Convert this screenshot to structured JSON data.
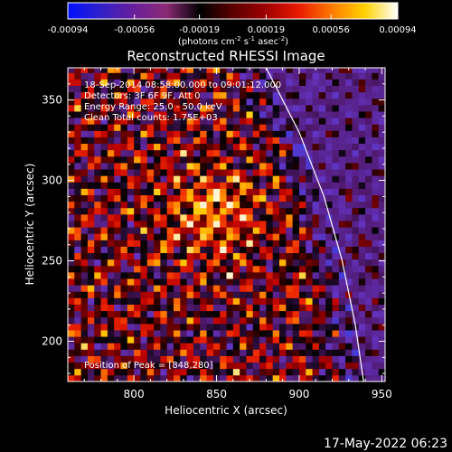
{
  "chart_data": {
    "type": "heatmap",
    "title": "Reconstructed RHESSI Image",
    "colorbar": {
      "ticks": [
        "-0.00094",
        "-0.00056",
        "-0.00019",
        "0.00019",
        "0.00056",
        "0.00094"
      ],
      "unit_parts": [
        "(photons cm",
        "-2",
        " s",
        "-1",
        " asec",
        "-2",
        ")"
      ],
      "range": [
        -0.00094,
        0.00094
      ],
      "colors": [
        "#0010ff",
        "#3020c8",
        "#6a1f9a",
        "#8a2a74",
        "#000000",
        "#5a0000",
        "#a00000",
        "#e81a00",
        "#ff7a00",
        "#ffd200",
        "#ffffff"
      ]
    },
    "xlabel": "Heliocentric X (arcsec)",
    "ylabel": "Heliocentric Y (arcsec)",
    "xlim": [
      760,
      952
    ],
    "ylim": [
      175,
      370
    ],
    "xticks": [
      {
        "value": 800,
        "label": "800"
      },
      {
        "value": 850,
        "label": "850"
      },
      {
        "value": 900,
        "label": "900"
      },
      {
        "value": 950,
        "label": "950"
      }
    ],
    "yticks": [
      {
        "value": 200,
        "label": "200"
      },
      {
        "value": 250,
        "label": "250"
      },
      {
        "value": 300,
        "label": "300"
      },
      {
        "value": 350,
        "label": "350"
      }
    ],
    "limb_curve": [
      [
        880,
        370
      ],
      [
        900,
        330
      ],
      [
        915,
        290
      ],
      [
        926,
        250
      ],
      [
        934,
        210
      ],
      [
        939,
        175
      ]
    ],
    "peak": [
      848,
      280
    ],
    "info_lines": [
      "18-Sep-2014 08:58:00.000 to 09:01:12.000",
      "Detectors: 3F 6F 9F, Att 0",
      "Energy Range: 25.0 - 50.0 keV",
      "Clean     Total counts: 1.75E+03"
    ],
    "peak_label": "Position of Peak = [848,280]",
    "timestamp": "17-May-2022 06:23"
  }
}
